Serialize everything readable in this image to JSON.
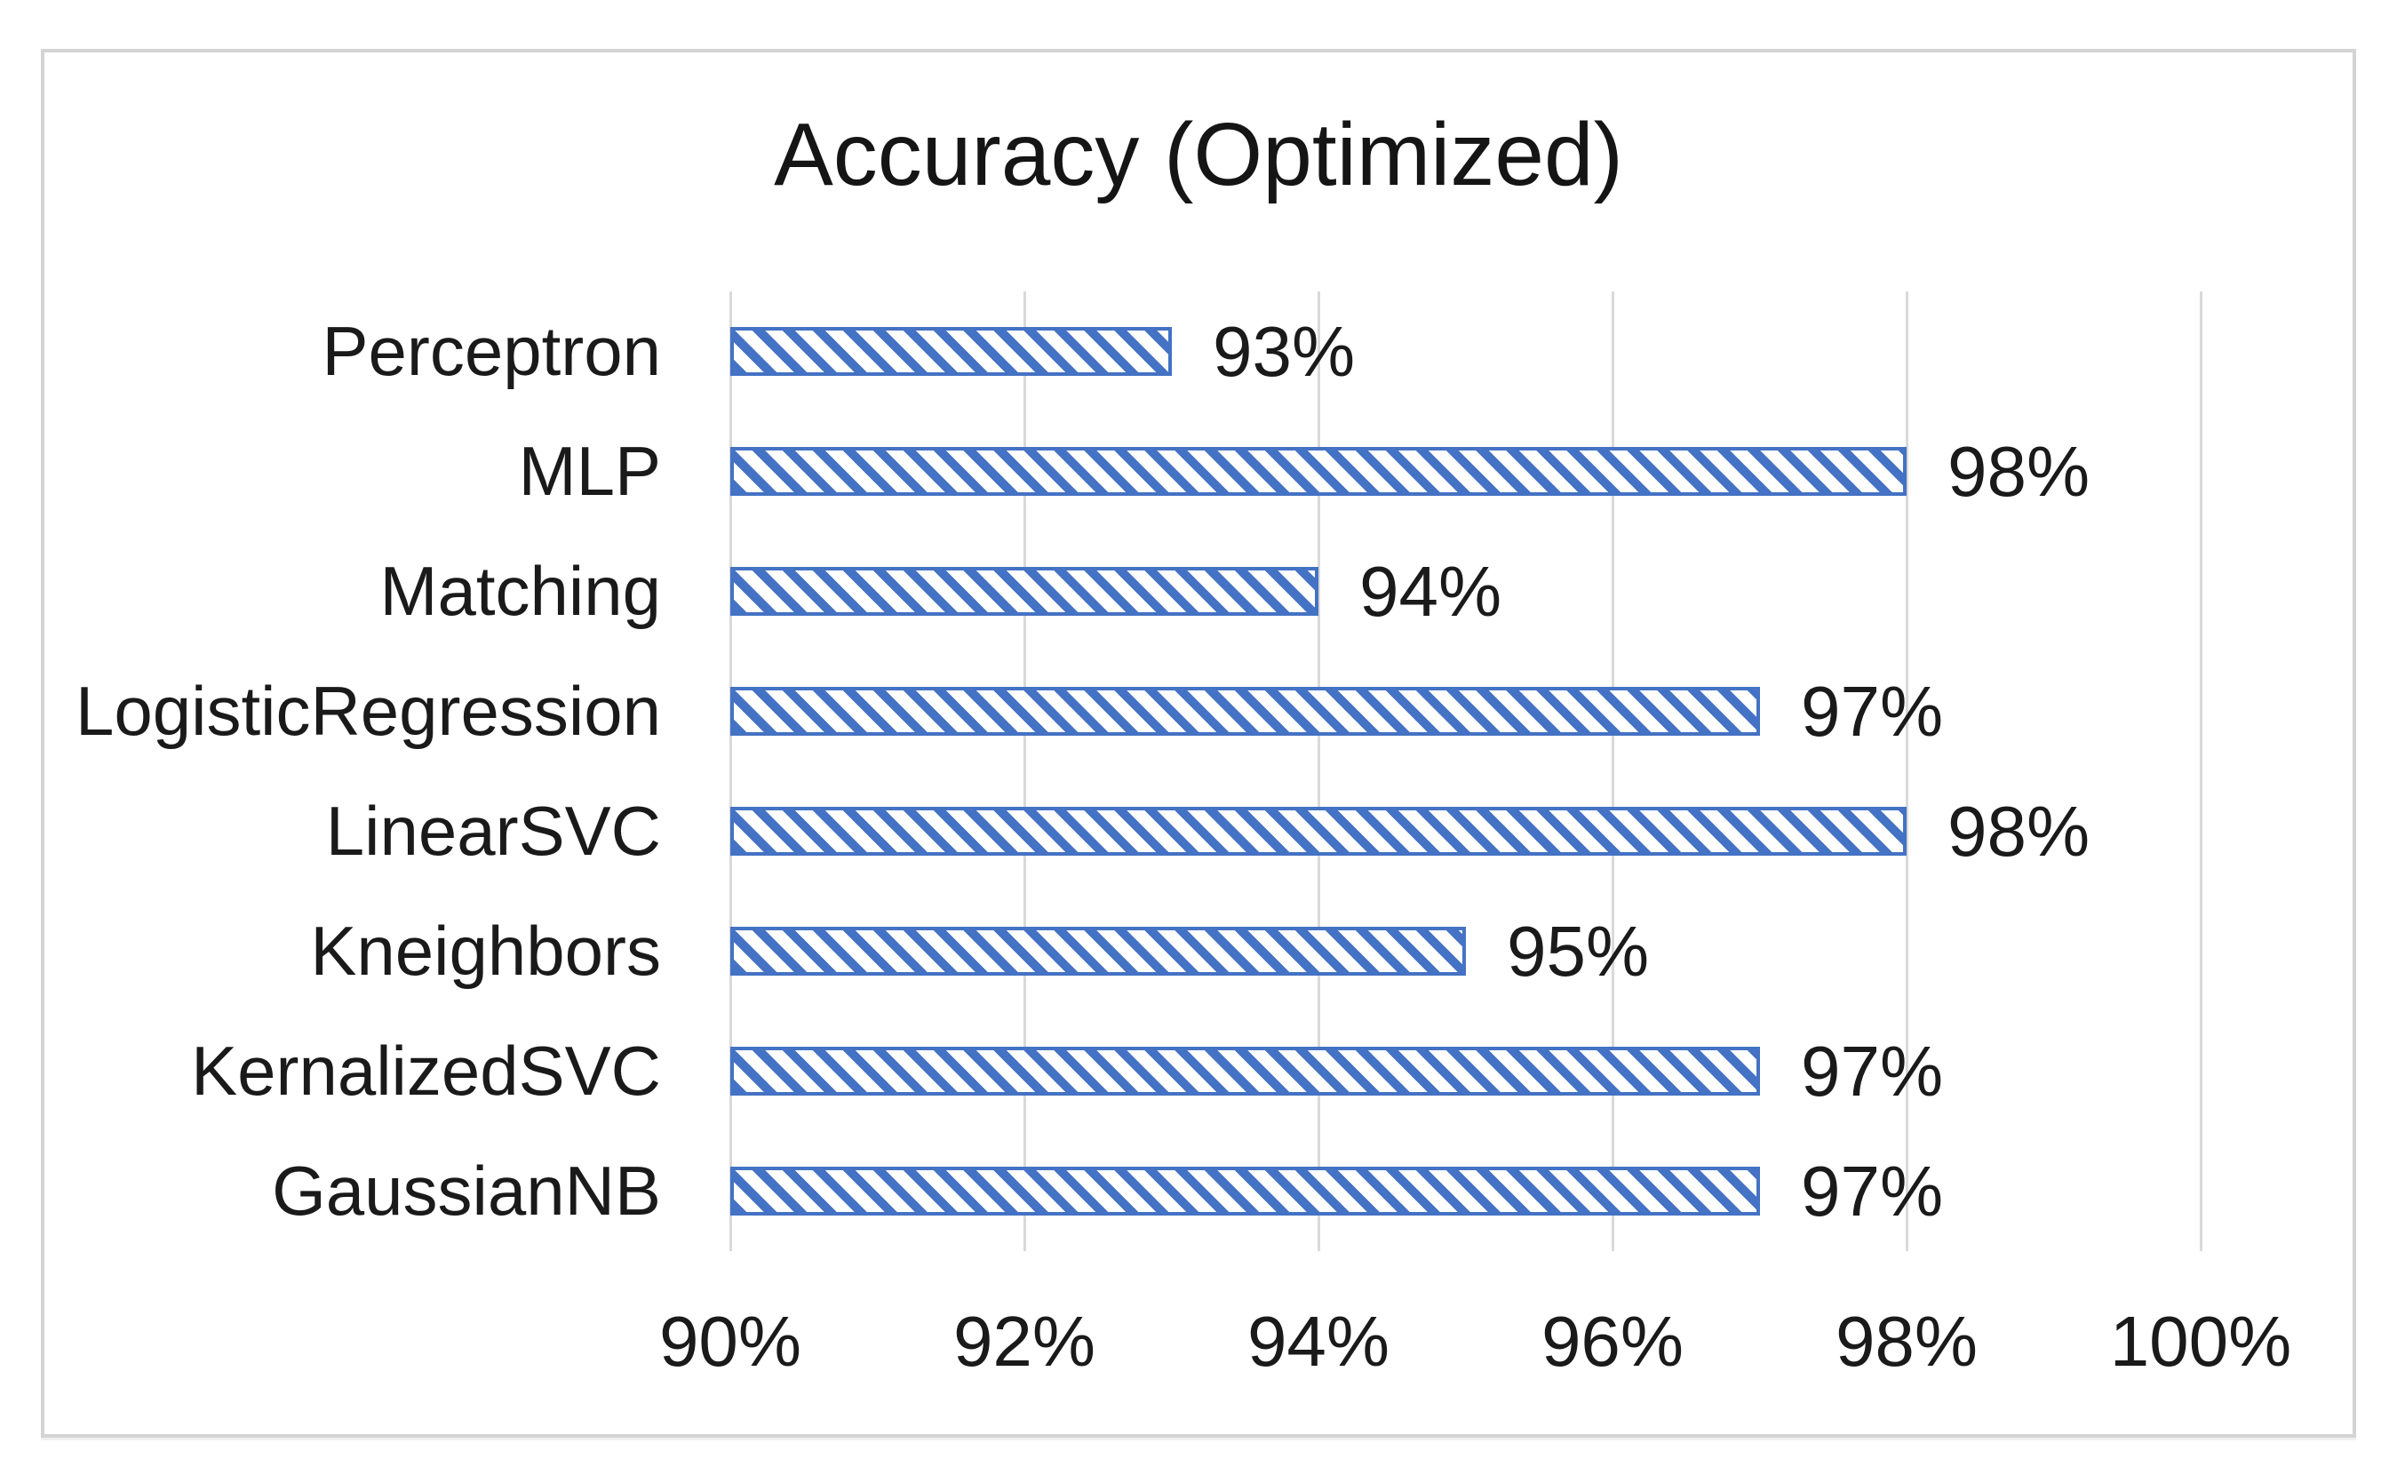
{
  "page": {
    "background_color": "#FFFFFF",
    "frame_border_color": "#D4D4D4"
  },
  "chart_data": {
    "type": "bar",
    "orientation": "horizontal",
    "title": "Accuracy (Optimized)",
    "categories": [
      "Perceptron",
      "MLP",
      "Matching",
      "LogisticRegression",
      "LinearSVC",
      "Kneighbors",
      "KernalizedSVC",
      "GaussianNB"
    ],
    "values": [
      93,
      98,
      94,
      97,
      98,
      95,
      97,
      97
    ],
    "value_labels": [
      "93%",
      "98%",
      "94%",
      "97%",
      "98%",
      "95%",
      "97%",
      "97%"
    ],
    "x_tick_values": [
      90,
      92,
      94,
      96,
      98,
      100
    ],
    "x_tick_labels": [
      "90%",
      "92%",
      "94%",
      "96%",
      "98%",
      "100%"
    ],
    "xlim": [
      90,
      100
    ],
    "xlabel": "",
    "ylabel": "",
    "grid": true,
    "legend": false,
    "bar_fill_pattern": "diagonal-stripe-down",
    "bar_color": "#4472C4",
    "gridline_color": "#D9D9D9",
    "text_color": "#1A1A1A"
  }
}
